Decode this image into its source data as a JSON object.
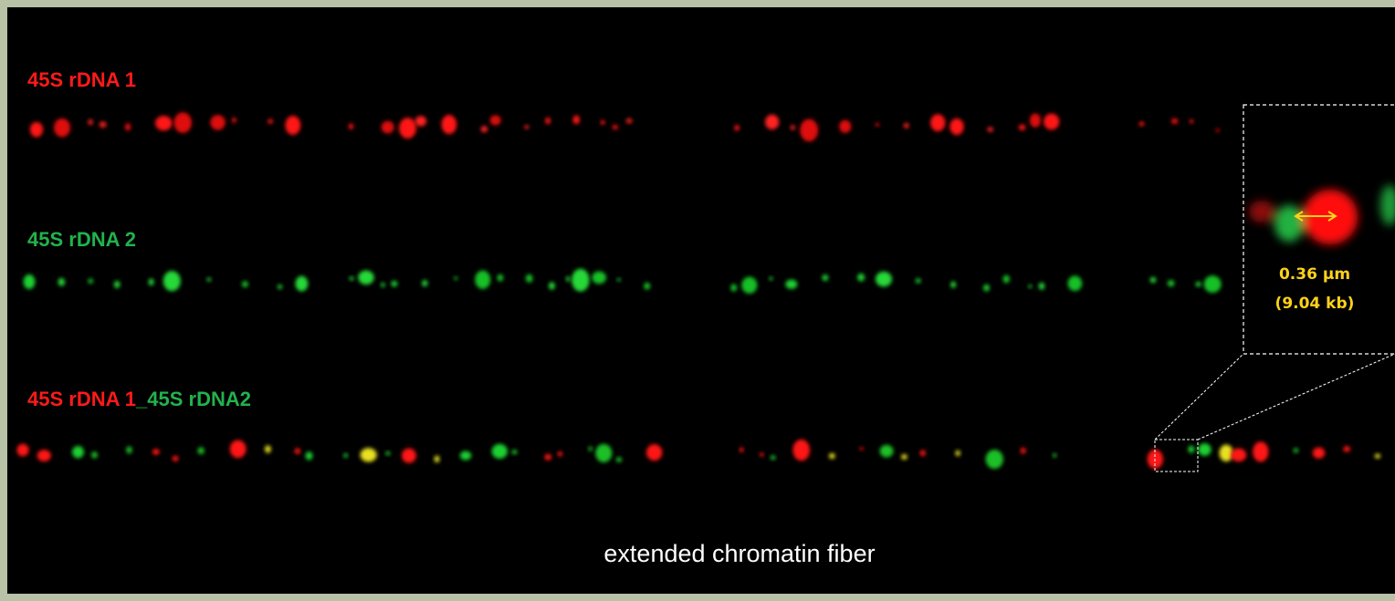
{
  "labels": {
    "row1": "45S rDNA 1",
    "row2": "45S rDNA 2",
    "row3_red": "45S rDNA 1",
    "row3_green": "_45S rDNA2"
  },
  "inset": {
    "distance": "0.36 µm",
    "size": "(9.04 kb)"
  },
  "caption": "extended chromatin fiber"
}
